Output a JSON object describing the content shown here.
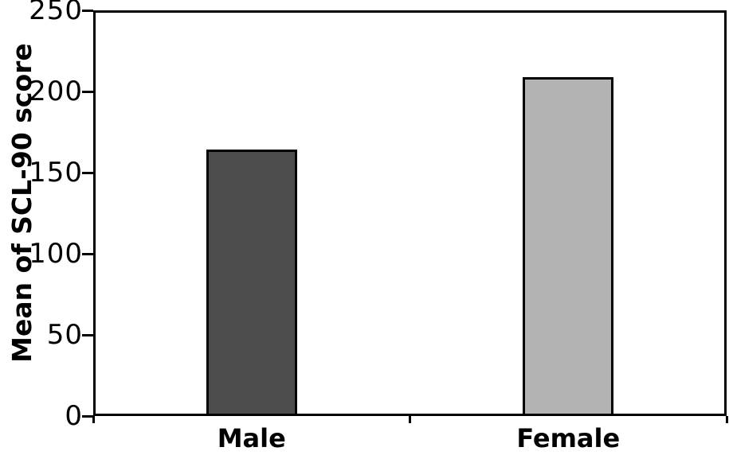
{
  "chart_data": {
    "type": "bar",
    "categories": [
      "Male",
      "Female"
    ],
    "values": [
      164,
      209
    ],
    "bar_colors": [
      "#4d4d4d",
      "#b3b3b3"
    ],
    "bar_border_color": "#000000",
    "title": "",
    "xlabel": "",
    "ylabel": "Mean of SCL-90 score",
    "ylim": [
      0,
      250
    ],
    "yticks": [
      0,
      50,
      100,
      150,
      200,
      250
    ],
    "grid": false,
    "legend": false,
    "axis_color": "#000000",
    "text_color": "#000000",
    "background_color": "#ffffff"
  }
}
